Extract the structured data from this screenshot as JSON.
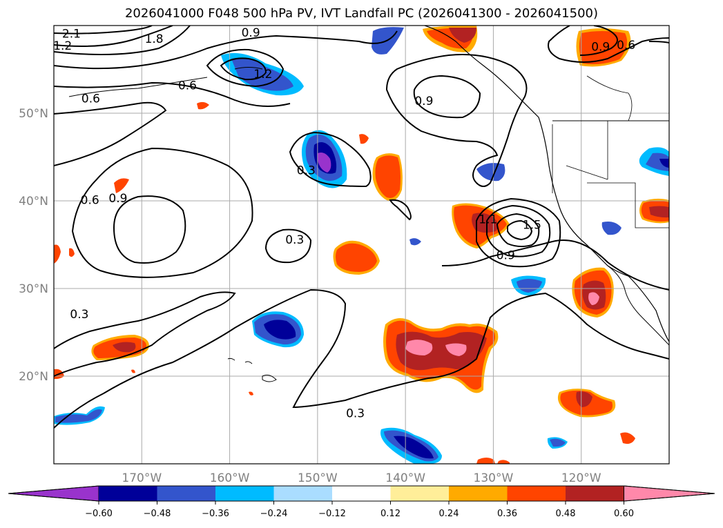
{
  "title": "2026041000 F048 500 hPa PV, IVT Landfall PC (2026041300 - 2026041500)",
  "map": {
    "lon_range": [
      -180,
      -110
    ],
    "lat_range": [
      10,
      60
    ],
    "lat_ticks": [
      {
        "value": 50,
        "label": "50°N"
      },
      {
        "value": 40,
        "label": "40°N"
      },
      {
        "value": 30,
        "label": "30°N"
      },
      {
        "value": 20,
        "label": "20°N"
      }
    ],
    "lon_ticks": [
      {
        "value": -170,
        "label": "170°W"
      },
      {
        "value": -160,
        "label": "160°W"
      },
      {
        "value": -150,
        "label": "150°W"
      },
      {
        "value": -140,
        "label": "140°W"
      },
      {
        "value": -130,
        "label": "130°W"
      },
      {
        "value": -120,
        "label": "120°W"
      }
    ],
    "contour_labels": [
      {
        "text": "2.1",
        "lon": -178,
        "lat": 59.1
      },
      {
        "text": "1.8",
        "lon": -168.6,
        "lat": 58.5
      },
      {
        "text": "1.2",
        "lon": -179,
        "lat": 57.7
      },
      {
        "text": "0.9",
        "lon": -157.6,
        "lat": 59.2
      },
      {
        "text": "1.2",
        "lon": -156.2,
        "lat": 54.5
      },
      {
        "text": "0.6",
        "lon": -164.8,
        "lat": 53.2
      },
      {
        "text": "0.6",
        "lon": -175.8,
        "lat": 51.7
      },
      {
        "text": "0.9",
        "lon": -137.9,
        "lat": 51.4
      },
      {
        "text": "0.9",
        "lon": -117.8,
        "lat": 57.6
      },
      {
        "text": "0.6",
        "lon": -114.9,
        "lat": 57.8
      },
      {
        "text": "0.3",
        "lon": -151.3,
        "lat": 43.5
      },
      {
        "text": "0.6",
        "lon": -175.9,
        "lat": 40.1
      },
      {
        "text": "0.9",
        "lon": -172.7,
        "lat": 40.3
      },
      {
        "text": "0.3",
        "lon": -152.6,
        "lat": 35.6
      },
      {
        "text": "1.5",
        "lon": -125.6,
        "lat": 37.3
      },
      {
        "text": "1.1",
        "lon": -130.6,
        "lat": 37.9
      },
      {
        "text": "0.9",
        "lon": -128.6,
        "lat": 33.8
      },
      {
        "text": "0.3",
        "lon": -177.1,
        "lat": 27.1
      },
      {
        "text": "0.3",
        "lon": -145.7,
        "lat": 15.8
      }
    ]
  },
  "colorbar": {
    "levels": [
      -0.6,
      -0.48,
      -0.36,
      -0.24,
      -0.12,
      0.12,
      0.24,
      0.36,
      0.48,
      0.6
    ],
    "tick_labels": [
      "−0.60",
      "−0.48",
      "−0.36",
      "−0.24",
      "−0.12",
      "0.12",
      "0.24",
      "0.36",
      "0.48",
      "0.60"
    ],
    "colors": [
      "#9933cc",
      "#000099",
      "#3355cc",
      "#00bbff",
      "#aaddff",
      "#ffffff",
      "#ffee99",
      "#ffaa00",
      "#ff4400",
      "#b22222",
      "#ff88aa"
    ]
  }
}
